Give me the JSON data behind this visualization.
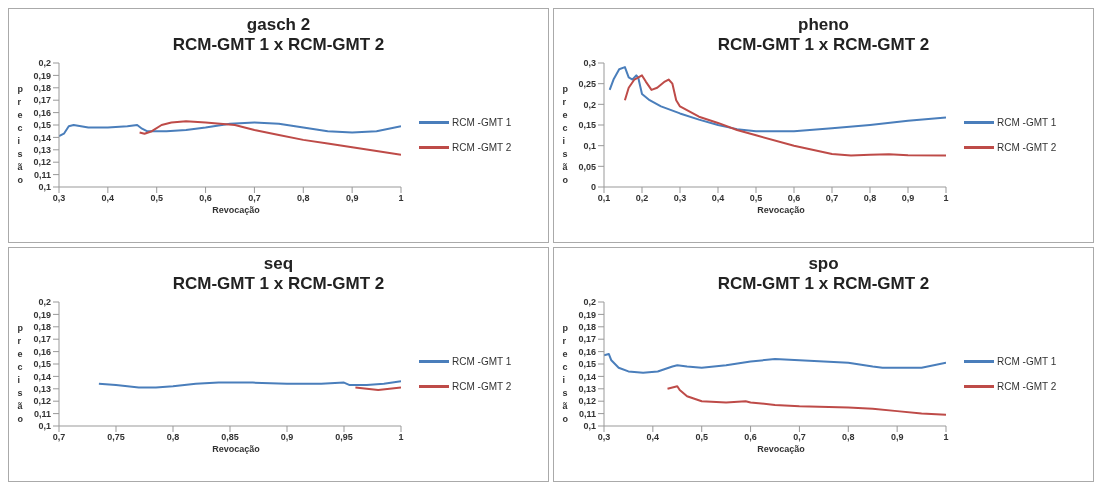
{
  "chart_data": [
    {
      "type": "line",
      "title": "gasch 2\nRCM-GMT 1 x RCM-GMT 2",
      "xlabel": "Revocação",
      "ylabel": "precisão",
      "legend": "right",
      "grid": false,
      "marker": "none",
      "line_style": "solid",
      "xlim": [
        0.3,
        1
      ],
      "xticks": [
        {
          "value": 0.3,
          "label": "0,3"
        },
        {
          "value": 0.4,
          "label": "0,4"
        },
        {
          "value": 0.5,
          "label": "0,5"
        },
        {
          "value": 0.6,
          "label": "0,6"
        },
        {
          "value": 0.7,
          "label": "0,7"
        },
        {
          "value": 0.8,
          "label": "0,8"
        },
        {
          "value": 0.9,
          "label": "0,9"
        },
        {
          "value": 1,
          "label": "1"
        }
      ],
      "ylim": [
        0.1,
        0.2
      ],
      "yticks": [
        {
          "value": 0.1,
          "label": "0,1"
        },
        {
          "value": 0.11,
          "label": "0,11"
        },
        {
          "value": 0.12,
          "label": "0,12"
        },
        {
          "value": 0.13,
          "label": "0,13"
        },
        {
          "value": 0.14,
          "label": "0,14"
        },
        {
          "value": 0.15,
          "label": "0,15"
        },
        {
          "value": 0.16,
          "label": "0,16"
        },
        {
          "value": 0.17,
          "label": "0,17"
        },
        {
          "value": 0.18,
          "label": "0,18"
        },
        {
          "value": 0.19,
          "label": "0,19"
        },
        {
          "value": 0.2,
          "label": "0,2"
        }
      ],
      "series": [
        {
          "name": "RCM -GMT 1",
          "color": "#4a7ebb",
          "x": [
            0.3,
            0.31,
            0.32,
            0.33,
            0.36,
            0.4,
            0.44,
            0.46,
            0.47,
            0.48,
            0.52,
            0.56,
            0.6,
            0.65,
            0.7,
            0.75,
            0.8,
            0.85,
            0.9,
            0.95,
            1
          ],
          "values": [
            0.141,
            0.143,
            0.149,
            0.15,
            0.148,
            0.148,
            0.149,
            0.15,
            0.147,
            0.145,
            0.145,
            0.146,
            0.148,
            0.151,
            0.152,
            0.151,
            0.148,
            0.145,
            0.144,
            0.145,
            0.149
          ]
        },
        {
          "name": "RCM -GMT 2",
          "color": "#be4b48",
          "x": [
            0.465,
            0.475,
            0.49,
            0.51,
            0.53,
            0.56,
            0.6,
            0.66,
            0.7,
            0.75,
            0.8,
            0.85,
            0.9,
            0.95,
            1
          ],
          "values": [
            0.144,
            0.143,
            0.145,
            0.15,
            0.152,
            0.153,
            0.152,
            0.15,
            0.146,
            0.142,
            0.138,
            0.135,
            0.132,
            0.129,
            0.126
          ]
        }
      ]
    },
    {
      "type": "line",
      "title": "pheno\nRCM-GMT 1 x RCM-GMT 2",
      "xlabel": "Revocação",
      "ylabel": "precisão",
      "legend": "right",
      "grid": false,
      "marker": "none",
      "line_style": "solid",
      "xlim": [
        0.1,
        1
      ],
      "xticks": [
        {
          "value": 0.1,
          "label": "0,1"
        },
        {
          "value": 0.2,
          "label": "0,2"
        },
        {
          "value": 0.3,
          "label": "0,3"
        },
        {
          "value": 0.4,
          "label": "0,4"
        },
        {
          "value": 0.5,
          "label": "0,5"
        },
        {
          "value": 0.6,
          "label": "0,6"
        },
        {
          "value": 0.7,
          "label": "0,7"
        },
        {
          "value": 0.8,
          "label": "0,8"
        },
        {
          "value": 0.9,
          "label": "0,9"
        },
        {
          "value": 1,
          "label": "1"
        }
      ],
      "ylim": [
        0,
        0.3
      ],
      "yticks": [
        {
          "value": 0,
          "label": "0"
        },
        {
          "value": 0.05,
          "label": "0,05"
        },
        {
          "value": 0.1,
          "label": "0,1"
        },
        {
          "value": 0.15,
          "label": "0,15"
        },
        {
          "value": 0.2,
          "label": "0,2"
        },
        {
          "value": 0.25,
          "label": "0,25"
        },
        {
          "value": 0.3,
          "label": "0,3"
        }
      ],
      "series": [
        {
          "name": "RCM -GMT 1",
          "color": "#4a7ebb",
          "x": [
            0.115,
            0.125,
            0.14,
            0.155,
            0.165,
            0.175,
            0.185,
            0.19,
            0.2,
            0.22,
            0.25,
            0.3,
            0.35,
            0.4,
            0.45,
            0.5,
            0.6,
            0.7,
            0.8,
            0.9,
            1
          ],
          "values": [
            0.235,
            0.26,
            0.285,
            0.29,
            0.265,
            0.26,
            0.27,
            0.265,
            0.225,
            0.21,
            0.195,
            0.178,
            0.163,
            0.15,
            0.14,
            0.135,
            0.135,
            0.142,
            0.15,
            0.16,
            0.168
          ]
        },
        {
          "name": "RCM -GMT 2",
          "color": "#be4b48",
          "x": [
            0.155,
            0.165,
            0.18,
            0.2,
            0.21,
            0.225,
            0.24,
            0.26,
            0.27,
            0.28,
            0.29,
            0.3,
            0.35,
            0.4,
            0.45,
            0.5,
            0.6,
            0.7,
            0.75,
            0.8,
            0.85,
            0.9,
            1
          ],
          "values": [
            0.21,
            0.24,
            0.26,
            0.27,
            0.255,
            0.235,
            0.24,
            0.255,
            0.26,
            0.25,
            0.21,
            0.195,
            0.17,
            0.155,
            0.138,
            0.125,
            0.1,
            0.08,
            0.076,
            0.078,
            0.079,
            0.077,
            0.076
          ]
        }
      ]
    },
    {
      "type": "line",
      "title": "seq\nRCM-GMT 1 x RCM-GMT 2",
      "xlabel": "Revocação",
      "ylabel": "precisão",
      "legend": "right",
      "grid": false,
      "marker": "none",
      "line_style": "solid",
      "xlim": [
        0.7,
        1
      ],
      "xticks": [
        {
          "value": 0.7,
          "label": "0,7"
        },
        {
          "value": 0.75,
          "label": "0,75"
        },
        {
          "value": 0.8,
          "label": "0,8"
        },
        {
          "value": 0.85,
          "label": "0,85"
        },
        {
          "value": 0.9,
          "label": "0,9"
        },
        {
          "value": 0.95,
          "label": "0,95"
        },
        {
          "value": 1,
          "label": "1"
        }
      ],
      "ylim": [
        0.1,
        0.2
      ],
      "yticks": [
        {
          "value": 0.1,
          "label": "0,1"
        },
        {
          "value": 0.11,
          "label": "0,11"
        },
        {
          "value": 0.12,
          "label": "0,12"
        },
        {
          "value": 0.13,
          "label": "0,13"
        },
        {
          "value": 0.14,
          "label": "0,14"
        },
        {
          "value": 0.15,
          "label": "0,15"
        },
        {
          "value": 0.16,
          "label": "0,16"
        },
        {
          "value": 0.17,
          "label": "0,17"
        },
        {
          "value": 0.18,
          "label": "0,18"
        },
        {
          "value": 0.19,
          "label": "0,19"
        },
        {
          "value": 0.2,
          "label": "0,2"
        }
      ],
      "series": [
        {
          "name": "RCM -GMT 1",
          "color": "#4a7ebb",
          "x": [
            0.735,
            0.75,
            0.77,
            0.785,
            0.8,
            0.82,
            0.84,
            0.87,
            0.9,
            0.93,
            0.95,
            0.955,
            0.97,
            0.985,
            1
          ],
          "values": [
            0.134,
            0.133,
            0.131,
            0.131,
            0.132,
            0.134,
            0.135,
            0.135,
            0.134,
            0.134,
            0.135,
            0.133,
            0.133,
            0.134,
            0.136
          ]
        },
        {
          "name": "RCM -GMT 2",
          "color": "#be4b48",
          "x": [
            0.96,
            0.97,
            0.98,
            0.99,
            1
          ],
          "values": [
            0.131,
            0.13,
            0.129,
            0.13,
            0.131
          ]
        }
      ]
    },
    {
      "type": "line",
      "title": "spo\nRCM-GMT 1 x RCM-GMT 2",
      "xlabel": "Revocação",
      "ylabel": "precisão",
      "legend": "right",
      "grid": false,
      "marker": "none",
      "line_style": "solid",
      "xlim": [
        0.3,
        1
      ],
      "xticks": [
        {
          "value": 0.3,
          "label": "0,3"
        },
        {
          "value": 0.4,
          "label": "0,4"
        },
        {
          "value": 0.5,
          "label": "0,5"
        },
        {
          "value": 0.6,
          "label": "0,6"
        },
        {
          "value": 0.7,
          "label": "0,7"
        },
        {
          "value": 0.8,
          "label": "0,8"
        },
        {
          "value": 0.9,
          "label": "0,9"
        },
        {
          "value": 1,
          "label": "1"
        }
      ],
      "ylim": [
        0.1,
        0.2
      ],
      "yticks": [
        {
          "value": 0.1,
          "label": "0,1"
        },
        {
          "value": 0.11,
          "label": "0,11"
        },
        {
          "value": 0.12,
          "label": "0,12"
        },
        {
          "value": 0.13,
          "label": "0,13"
        },
        {
          "value": 0.14,
          "label": "0,14"
        },
        {
          "value": 0.15,
          "label": "0,15"
        },
        {
          "value": 0.16,
          "label": "0,16"
        },
        {
          "value": 0.17,
          "label": "0,17"
        },
        {
          "value": 0.18,
          "label": "0,18"
        },
        {
          "value": 0.19,
          "label": "0,19"
        },
        {
          "value": 0.2,
          "label": "0,2"
        }
      ],
      "series": [
        {
          "name": "RCM -GMT 1",
          "color": "#4a7ebb",
          "x": [
            0.3,
            0.31,
            0.315,
            0.33,
            0.35,
            0.38,
            0.41,
            0.44,
            0.45,
            0.47,
            0.5,
            0.55,
            0.6,
            0.65,
            0.7,
            0.75,
            0.8,
            0.85,
            0.87,
            0.9,
            0.95,
            1
          ],
          "values": [
            0.157,
            0.158,
            0.153,
            0.147,
            0.144,
            0.143,
            0.144,
            0.148,
            0.149,
            0.148,
            0.147,
            0.149,
            0.152,
            0.154,
            0.153,
            0.152,
            0.151,
            0.148,
            0.147,
            0.147,
            0.147,
            0.151
          ]
        },
        {
          "name": "RCM -GMT 2",
          "color": "#be4b48",
          "x": [
            0.43,
            0.44,
            0.45,
            0.455,
            0.47,
            0.5,
            0.55,
            0.59,
            0.6,
            0.65,
            0.7,
            0.8,
            0.85,
            0.9,
            0.95,
            1
          ],
          "values": [
            0.13,
            0.131,
            0.132,
            0.129,
            0.124,
            0.12,
            0.119,
            0.12,
            0.119,
            0.117,
            0.116,
            0.115,
            0.114,
            0.112,
            0.11,
            0.109
          ]
        }
      ]
    }
  ]
}
